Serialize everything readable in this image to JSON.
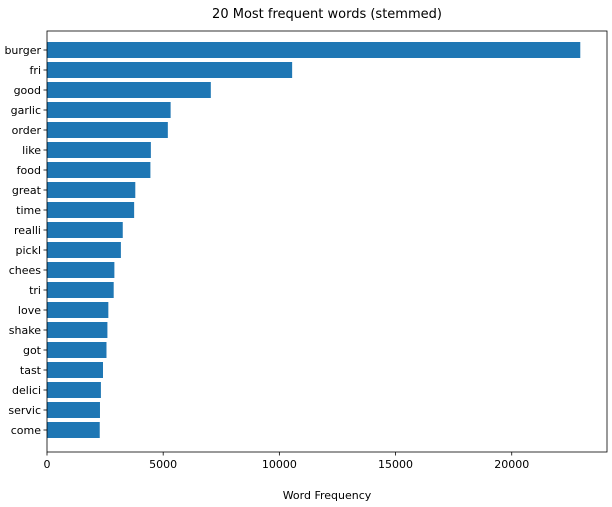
{
  "chart_data": {
    "type": "bar",
    "orientation": "horizontal",
    "title": "20 Most frequent words (stemmed)",
    "xlabel": "Word Frequency",
    "ylabel": "",
    "xlim": [
      0,
      24100
    ],
    "xticks": [
      0,
      5000,
      10000,
      15000,
      20000
    ],
    "categories": [
      "burger",
      "fri",
      "good",
      "garlic",
      "order",
      "like",
      "food",
      "great",
      "time",
      "realli",
      "pickl",
      "chees",
      "tri",
      "love",
      "shake",
      "got",
      "tast",
      "delici",
      "servic",
      "come"
    ],
    "values": [
      22950,
      10550,
      7050,
      5320,
      5200,
      4470,
      4450,
      3800,
      3750,
      3260,
      3180,
      2900,
      2870,
      2640,
      2600,
      2560,
      2410,
      2320,
      2280,
      2270
    ],
    "bar_color": "#1f77b4",
    "grid": false,
    "legend": "none"
  }
}
